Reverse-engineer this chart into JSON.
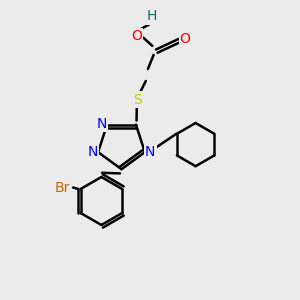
{
  "background_color": "#ebebeb",
  "atom_colors": {
    "N": "#0000ff",
    "O": "#ff0000",
    "S": "#cccc00",
    "Br": "#cc6600",
    "C": "#000000",
    "H": "#007070"
  },
  "lw": 1.8,
  "fontsize": 10,
  "xlim": [
    0,
    10
  ],
  "ylim": [
    0,
    10
  ]
}
